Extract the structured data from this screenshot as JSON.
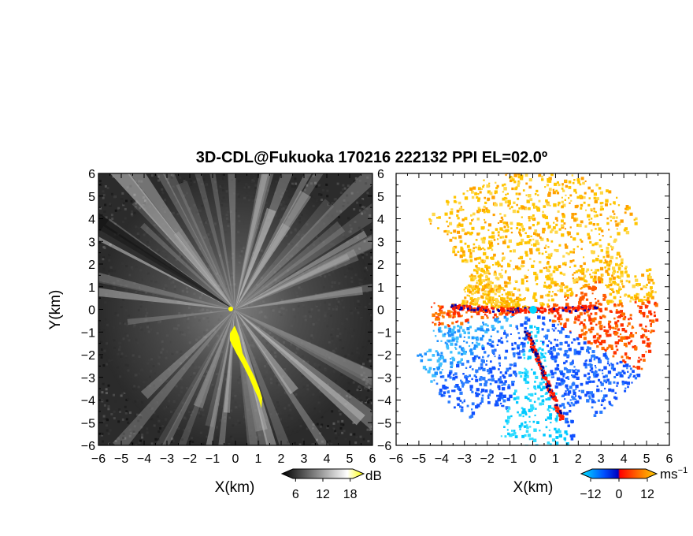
{
  "title": "3D-CDL@Fukuoka 170216 222132 PPI EL=02.0º",
  "panels": [
    {
      "id": "intensity",
      "xlabel": "X(km)",
      "ylabel": "Y(km)",
      "colorbar": {
        "unit": "dB",
        "tick_labels": [
          "6",
          "12",
          "18"
        ]
      }
    },
    {
      "id": "velocity",
      "xlabel": "X(km)",
      "ylabel": "",
      "colorbar": {
        "unit": "ms",
        "unit_sup": "−1",
        "tick_labels": [
          "−12",
          "0",
          "12"
        ]
      }
    }
  ],
  "chart_data": [
    {
      "type": "heatmap",
      "description_field": "intensity",
      "title": "3D-CDL@Fukuoka 170216 222132 PPI EL=02.0º",
      "xlabel": "X(km)",
      "ylabel": "Y(km)",
      "xlim": [
        -6,
        6
      ],
      "ylim": [
        -6,
        6
      ],
      "x_ticks": [
        "−6",
        "−5",
        "−4",
        "−3",
        "−2",
        "−1",
        "0",
        "1",
        "2",
        "3",
        "4",
        "5",
        "6"
      ],
      "y_ticks": [
        "−6",
        "−5",
        "−4",
        "−3",
        "−2",
        "−1",
        "0",
        "1",
        "2",
        "3",
        "4",
        "5",
        "6"
      ],
      "colorbar": {
        "unit": "dB",
        "range": [
          3,
          21
        ],
        "ticks": [
          6,
          12,
          18
        ],
        "colors": [
          "#000000",
          "#ffffff",
          "#ffff00"
        ]
      },
      "colors": {
        "background": "#2a2a2a",
        "beams": "#d8d8d8",
        "highlight": "#ffff00"
      }
    },
    {
      "type": "heatmap",
      "description_field": "radial velocity",
      "xlabel": "X(km)",
      "xlim": [
        -6,
        6
      ],
      "ylim": [
        -6,
        6
      ],
      "x_ticks": [
        "−6",
        "−5",
        "−4",
        "−3",
        "−2",
        "−1",
        "0",
        "1",
        "2",
        "3",
        "4",
        "5",
        "6"
      ],
      "y_ticks": [
        "−6",
        "−5",
        "−4",
        "−3",
        "−2",
        "−1",
        "0",
        "1",
        "2",
        "3",
        "4",
        "5",
        "6"
      ],
      "colorbar": {
        "unit": "ms⁻¹",
        "range": [
          -16,
          16
        ],
        "ticks": [
          -12,
          0,
          12
        ],
        "colors": [
          "#00e5ff",
          "#0050ff",
          "#0000c0",
          "#ff0000",
          "#ff6a00",
          "#ffd000"
        ]
      },
      "colors": {
        "positive": "#ffb000",
        "negative": "#1e78ff",
        "fold": "#ff1e00"
      }
    }
  ]
}
